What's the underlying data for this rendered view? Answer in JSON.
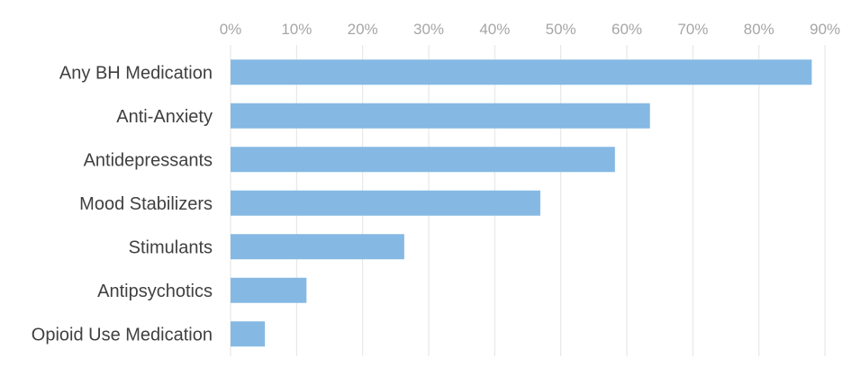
{
  "chart_data": {
    "type": "bar",
    "orientation": "horizontal",
    "title": "",
    "xlabel": "",
    "ylabel": "",
    "categories": [
      "Any BH Medication",
      "Anti-Anxiety",
      "Antidepressants",
      "Mood Stabilizers",
      "Stimulants",
      "Antipsychotics",
      "Opioid Use Medication"
    ],
    "values": [
      88,
      63.5,
      58.2,
      46.9,
      26.3,
      11.5,
      5.2
    ],
    "xlim": [
      0,
      90
    ],
    "tick_values": [
      0,
      10,
      20,
      30,
      40,
      50,
      60,
      70,
      80,
      90
    ],
    "tick_labels": [
      "0%",
      "10%",
      "20%",
      "30%",
      "40%",
      "50%",
      "60%",
      "70%",
      "80%",
      "90%"
    ],
    "axis_position": "top",
    "grid": true,
    "legend": "none",
    "bar_color": "#85b9e4"
  }
}
